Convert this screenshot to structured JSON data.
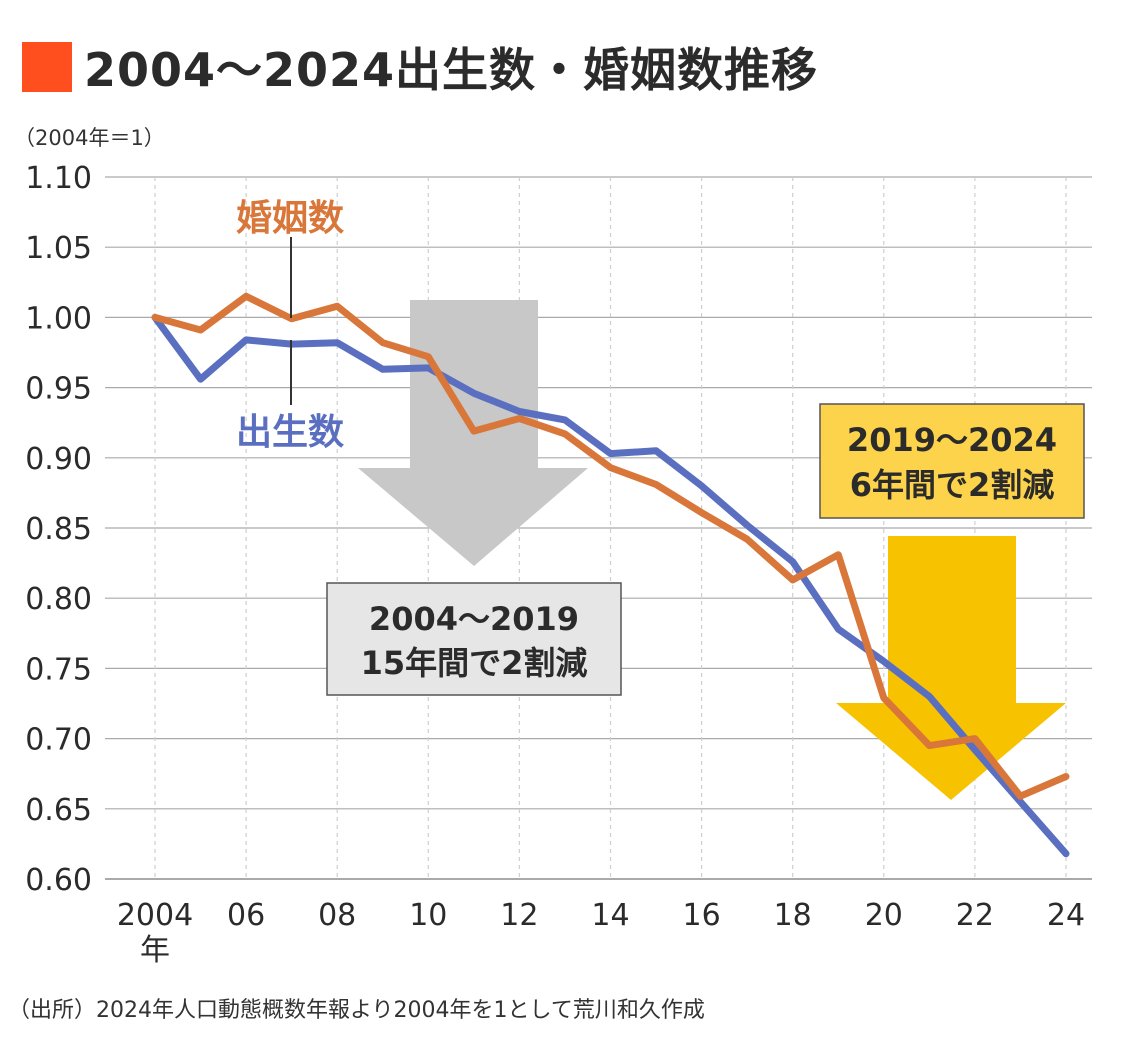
{
  "title": "2004〜2024出生数・婚姻数推移",
  "unit_note": "（2004年＝1）",
  "source": "（出所）2024年人口動態概数年報より2004年を1として荒川和久作成",
  "colors": {
    "title_block": "#ff4f1f",
    "births": "#5b6fc0",
    "marriages": "#d9773a",
    "gray_arrow": "#c8c8c8",
    "yellow_arrow": "#f7c300",
    "gray_box": "#e6e6e6",
    "yellow_box": "#fcd34a",
    "grid": "#aaaaaa"
  },
  "chart_data": {
    "type": "line",
    "x": [
      2004,
      2005,
      2006,
      2007,
      2008,
      2009,
      2010,
      2011,
      2012,
      2013,
      2014,
      2015,
      2016,
      2017,
      2018,
      2019,
      2020,
      2021,
      2022,
      2023,
      2024
    ],
    "xtick_values": [
      2004,
      2006,
      2008,
      2010,
      2012,
      2014,
      2016,
      2018,
      2020,
      2022,
      2024
    ],
    "xtick_labels": [
      "2004",
      "06",
      "08",
      "10",
      "12",
      "14",
      "16",
      "18",
      "20",
      "22",
      "24"
    ],
    "xtick_first_suffix": "年",
    "ytick_labels": [
      "1.10",
      "1.05",
      "1.00",
      "0.95",
      "0.90",
      "0.85",
      "0.80",
      "0.75",
      "0.70",
      "0.65",
      "0.60"
    ],
    "ylim": [
      0.6,
      1.1
    ],
    "xlim": [
      2004,
      2024
    ],
    "grid": true,
    "series": [
      {
        "name": "出生数",
        "color": "#5b6fc0",
        "values": [
          1.0,
          0.956,
          0.984,
          0.981,
          0.982,
          0.963,
          0.964,
          0.946,
          0.933,
          0.927,
          0.903,
          0.905,
          0.88,
          0.852,
          0.826,
          0.778,
          0.755,
          0.73,
          0.692,
          0.655,
          0.618
        ]
      },
      {
        "name": "婚姻数",
        "color": "#d9773a",
        "values": [
          1.0,
          0.991,
          1.015,
          0.999,
          1.008,
          0.982,
          0.972,
          0.919,
          0.928,
          0.917,
          0.893,
          0.881,
          0.861,
          0.842,
          0.813,
          0.831,
          0.729,
          0.695,
          0.7,
          0.659,
          0.673
        ]
      }
    ],
    "annotations": [
      {
        "id": "gray",
        "lines": [
          "2004〜2019",
          "15年間で2割減"
        ]
      },
      {
        "id": "yellow",
        "lines": [
          "2019〜2024",
          "6年間で2割減"
        ]
      }
    ]
  }
}
